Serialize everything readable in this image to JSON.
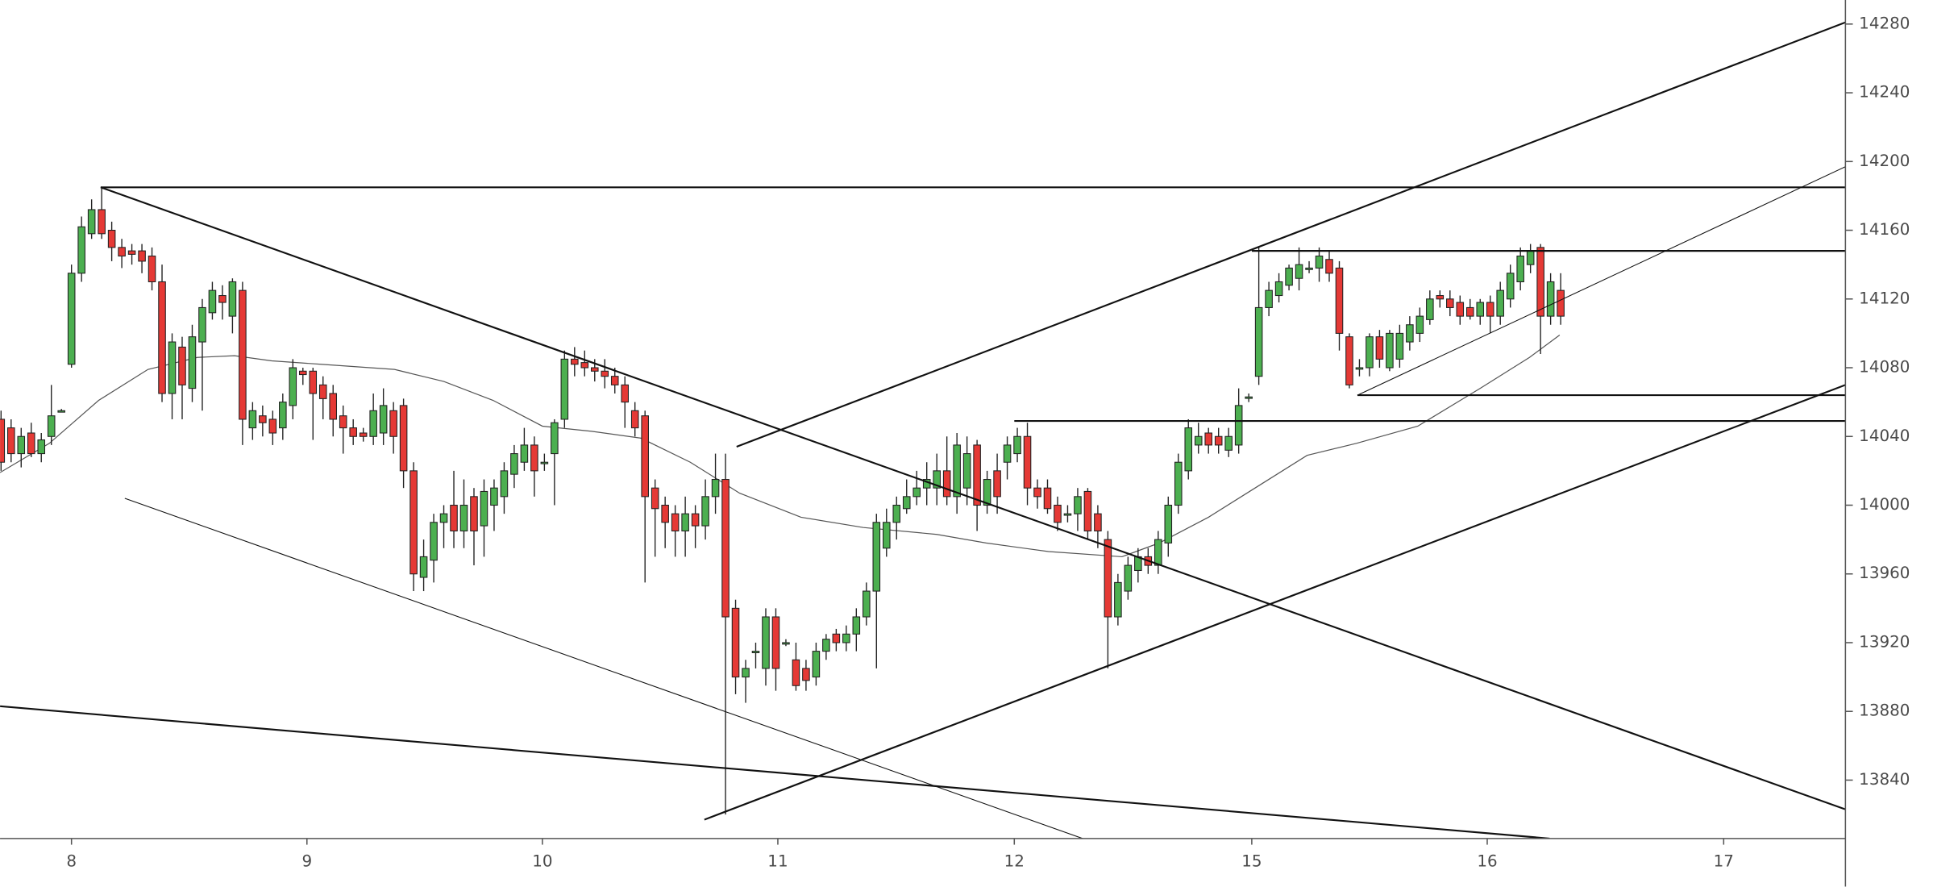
{
  "chart_data": {
    "type": "candlestick",
    "open": [
      14050,
      14045,
      14030,
      14042,
      14030,
      14040,
      14055,
      14082,
      14135,
      14158,
      14172,
      14160,
      14150,
      14148,
      14148,
      14145,
      14130,
      14065,
      14092,
      14068,
      14095,
      14112,
      14122,
      14110,
      14125,
      14045,
      14052,
      14050,
      14045,
      14058,
      14078,
      14078,
      14070,
      14065,
      14052,
      14045,
      14042,
      14040,
      14042,
      14055,
      14058,
      14020,
      13958,
      13968,
      13990,
      14000,
      13985,
      14005,
      13988,
      14000,
      14005,
      14018,
      14025,
      14035,
      14025,
      14030,
      14050,
      14085,
      14083,
      14080,
      14078,
      14075,
      14070,
      14055,
      14052,
      14010,
      14000,
      13995,
      13985,
      13995,
      13988,
      14005,
      14015,
      13940,
      13900,
      13915,
      13905,
      13935,
      13920,
      13910,
      13905,
      13900,
      13915,
      13925,
      13920,
      13925,
      13935,
      13950,
      13975,
      13990,
      13998,
      14005,
      14010,
      14010,
      14020,
      14005,
      14010,
      14035,
      14000,
      14020,
      14025,
      14030,
      14040,
      14010,
      14010,
      14000,
      13995,
      13995,
      14008,
      13995,
      13980,
      13935,
      13950,
      13962,
      13970,
      13965,
      13978,
      14000,
      14020,
      14035,
      14042,
      14040,
      14032,
      14035,
      14063,
      14075,
      14115,
      14122,
      14128,
      14132,
      14138,
      14138,
      14143,
      14138,
      14098,
      14080,
      14080,
      14098,
      14080,
      14085,
      14095,
      14100,
      14108,
      14122,
      14120,
      14118,
      14115,
      14110,
      14118,
      14110,
      14120,
      14130,
      14140,
      14150,
      14110,
      14125
    ],
    "high": [
      14055,
      14050,
      14045,
      14048,
      14042,
      14070,
      14056,
      14140,
      14168,
      14178,
      14185,
      14165,
      14155,
      14152,
      14152,
      14150,
      14140,
      14100,
      14098,
      14105,
      14120,
      14130,
      14128,
      14132,
      14130,
      14060,
      14058,
      14055,
      14065,
      14085,
      14080,
      14080,
      14075,
      14070,
      14058,
      14050,
      14045,
      14065,
      14068,
      14060,
      14062,
      14025,
      13980,
      13995,
      14000,
      14020,
      14015,
      14010,
      14015,
      14015,
      14025,
      14035,
      14045,
      14040,
      14030,
      14050,
      14090,
      14092,
      14090,
      14085,
      14085,
      14080,
      14075,
      14060,
      14055,
      14015,
      14005,
      14000,
      14005,
      14000,
      14015,
      14030,
      14030,
      13945,
      13910,
      13920,
      13940,
      13940,
      13922,
      13920,
      13910,
      13920,
      13925,
      13928,
      13930,
      13940,
      13955,
      13995,
      13998,
      14005,
      14015,
      14020,
      14025,
      14030,
      14040,
      14042,
      14040,
      14038,
      14020,
      14030,
      14040,
      14045,
      14048,
      14015,
      14015,
      14005,
      14000,
      14010,
      14010,
      14000,
      13985,
      13960,
      13970,
      13975,
      13975,
      13985,
      14005,
      14030,
      14050,
      14048,
      14045,
      14045,
      14045,
      14068,
      14065,
      14150,
      14130,
      14135,
      14140,
      14150,
      14142,
      14150,
      14148,
      14142,
      14100,
      14085,
      14100,
      14102,
      14102,
      14105,
      14110,
      14115,
      14125,
      14125,
      14125,
      14122,
      14120,
      14120,
      14122,
      14130,
      14140,
      14150,
      14152,
      14152,
      14135,
      14135
    ],
    "low": [
      14020,
      14025,
      14022,
      14028,
      14025,
      14035,
      14054,
      14080,
      14130,
      14155,
      14155,
      14142,
      14138,
      14140,
      14135,
      14125,
      14060,
      14050,
      14050,
      14060,
      14055,
      14108,
      14108,
      14100,
      14035,
      14038,
      14040,
      14035,
      14038,
      14050,
      14070,
      14038,
      14050,
      14040,
      14030,
      14035,
      14037,
      14035,
      14035,
      14030,
      14010,
      13950,
      13950,
      13955,
      13975,
      13975,
      13975,
      13965,
      13970,
      13985,
      13995,
      14010,
      14020,
      14005,
      14020,
      14000,
      14045,
      14075,
      14075,
      14072,
      14068,
      14065,
      14045,
      14040,
      13955,
      13970,
      13975,
      13970,
      13970,
      13975,
      13980,
      13995,
      13820,
      13890,
      13885,
      13905,
      13895,
      13892,
      13918,
      13892,
      13892,
      13895,
      13910,
      13915,
      13915,
      13915,
      13930,
      13905,
      13970,
      13980,
      13995,
      14000,
      14000,
      14000,
      14000,
      13995,
      14000,
      13985,
      13995,
      13995,
      14015,
      14025,
      14000,
      13998,
      13995,
      13985,
      13990,
      13985,
      13980,
      13975,
      13905,
      13930,
      13945,
      13955,
      13960,
      13960,
      13970,
      13995,
      14015,
      14030,
      14030,
      14030,
      14028,
      14030,
      14060,
      14070,
      14110,
      14118,
      14125,
      14125,
      14135,
      14130,
      14130,
      14090,
      14068,
      14075,
      14075,
      14080,
      14078,
      14080,
      14090,
      14095,
      14105,
      14115,
      14110,
      14105,
      14108,
      14105,
      14100,
      14105,
      14115,
      14125,
      14135,
      14088,
      14105,
      14105
    ],
    "close": [
      14025,
      14030,
      14040,
      14030,
      14038,
      14052,
      14055,
      14135,
      14162,
      14172,
      14158,
      14150,
      14145,
      14146,
      14142,
      14130,
      14065,
      14095,
      14070,
      14098,
      14115,
      14125,
      14118,
      14130,
      14050,
      14055,
      14048,
      14042,
      14060,
      14080,
      14076,
      14065,
      14062,
      14050,
      14045,
      14040,
      14040,
      14055,
      14058,
      14040,
      14020,
      13960,
      13970,
      13990,
      13995,
      13985,
      14000,
      13985,
      14008,
      14010,
      14020,
      14030,
      14035,
      14020,
      14025,
      14048,
      14085,
      14082,
      14080,
      14078,
      14075,
      14070,
      14060,
      14045,
      14005,
      13998,
      13990,
      13985,
      13995,
      13988,
      14005,
      14015,
      13935,
      13900,
      13905,
      13915,
      13935,
      13905,
      13920,
      13895,
      13898,
      13915,
      13922,
      13920,
      13925,
      13935,
      13950,
      13990,
      13990,
      14000,
      14005,
      14010,
      14015,
      14020,
      14005,
      14035,
      14030,
      14000,
      14015,
      14005,
      14035,
      14040,
      14010,
      14005,
      13998,
      13990,
      13995,
      14005,
      13985,
      13985,
      13935,
      13955,
      13965,
      13970,
      13965,
      13980,
      14000,
      14025,
      14045,
      14040,
      14035,
      14035,
      14040,
      14058,
      14063,
      14115,
      14125,
      14130,
      14138,
      14140,
      14138,
      14145,
      14135,
      14100,
      14070,
      14080,
      14098,
      14085,
      14100,
      14100,
      14105,
      14110,
      14120,
      14120,
      14115,
      14110,
      14110,
      14118,
      14110,
      14125,
      14135,
      14145,
      14148,
      14110,
      14130,
      14110
    ],
    "up_color": "#4caf50",
    "down_color": "#e53935",
    "xlim": [
      -0.1,
      183.3
    ],
    "xticks": [
      {
        "value": 7,
        "label": "8"
      },
      {
        "value": 30.4,
        "label": "9"
      },
      {
        "value": 53.8,
        "label": "10"
      },
      {
        "value": 77.2,
        "label": "11"
      },
      {
        "value": 100.7,
        "label": "12"
      },
      {
        "value": 124.3,
        "label": "15"
      },
      {
        "value": 147.7,
        "label": "16"
      },
      {
        "value": 171.2,
        "label": "17"
      }
    ],
    "ylim": [
      13806,
      14294
    ],
    "yticks": [
      13840,
      13880,
      13920,
      13960,
      14000,
      14040,
      14080,
      14120,
      14160,
      14200,
      14240,
      14280
    ],
    "moving_average": {
      "color": "#555555",
      "x": [
        -0.1,
        4.8,
        9.7,
        14.6,
        19.5,
        23.2,
        26.9,
        31.8,
        39.1,
        44.0,
        48.9,
        53.8,
        58.7,
        63.6,
        68.5,
        73.4,
        79.5,
        85.7,
        93.0,
        97.9,
        104.1,
        111.4,
        115.1,
        120.0,
        124.9,
        129.8,
        134.7,
        140.8,
        147.0,
        151.9,
        154.9
      ],
      "values": [
        14019,
        14036,
        14061,
        14079,
        14086,
        14087,
        14084,
        14082,
        14079,
        14072,
        14061,
        14046,
        14043,
        14039,
        14025,
        14007,
        13993,
        13987,
        13983,
        13978,
        13973,
        13970,
        13978,
        13993,
        14011,
        14029,
        14036,
        14046,
        14068,
        14086,
        14099
      ]
    },
    "trendlines": [
      {
        "x": [
          9.9,
          183.3
        ],
        "y": [
          14185,
          14185
        ],
        "style": "thick"
      },
      {
        "x": [
          9.9,
          183.3
        ],
        "y": [
          14185,
          13823
        ],
        "style": "thick"
      },
      {
        "x": [
          73.1,
          183.3
        ],
        "y": [
          14034,
          14281
        ],
        "style": "thick"
      },
      {
        "x": [
          124.3,
          183.3
        ],
        "y": [
          14148,
          14148
        ],
        "style": "thick"
      },
      {
        "x": [
          134.8,
          183.3
        ],
        "y": [
          14064,
          14064
        ],
        "style": "thick"
      },
      {
        "x": [
          100.7,
          183.3
        ],
        "y": [
          14049,
          14049
        ],
        "style": "thick"
      },
      {
        "x": [
          69.9,
          183.3
        ],
        "y": [
          13817,
          14070
        ],
        "style": "thick"
      },
      {
        "x": [
          12.3,
          107.5
        ],
        "y": [
          14004,
          13806
        ],
        "style": "thin"
      },
      {
        "x": [
          -0.1,
          153.9
        ],
        "y": [
          13883,
          13806
        ],
        "style": "thick"
      },
      {
        "x": [
          134.8,
          183.3
        ],
        "y": [
          14064,
          14197
        ],
        "style": "thin"
      }
    ]
  }
}
